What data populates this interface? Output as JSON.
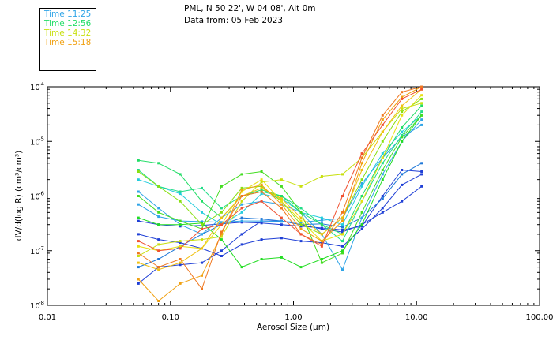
{
  "header": {
    "station": "PML, N 50 22', W 04 08', Alt 0m",
    "date_line": "Data from: 05 Feb 2023"
  },
  "legend": [
    {
      "label": "Time 11:25",
      "color": "#2fa4e7"
    },
    {
      "label": "Time 12:56",
      "color": "#22dd66"
    },
    {
      "label": "Time 14:32",
      "color": "#c8e010"
    },
    {
      "label": "Time 15:18",
      "color": "#f0a010"
    }
  ],
  "chart_data": {
    "type": "line",
    "x_scale": "log",
    "y_scale": "log",
    "xlim": [
      0.01,
      100
    ],
    "ylim": [
      1e-08,
      0.0001
    ],
    "xlabel": "Aerosol Size (μm)",
    "ylabel": "dV/d(log R) (cm³/cm³)",
    "x_ticks": [
      {
        "value": 0.01,
        "label": "0.01"
      },
      {
        "value": 0.1,
        "label": "0.10"
      },
      {
        "value": 1,
        "label": "1.00"
      },
      {
        "value": 10,
        "label": "10.00"
      },
      {
        "value": 100,
        "label": "100.00"
      }
    ],
    "y_ticks": [
      {
        "value": 1e-08,
        "label": "10",
        "exp": "-8"
      },
      {
        "value": 1e-07,
        "label": "10",
        "exp": "-7"
      },
      {
        "value": 1e-06,
        "label": "10",
        "exp": "-6"
      },
      {
        "value": 1e-05,
        "label": "10",
        "exp": "-5"
      },
      {
        "value": 0.0001,
        "label": "10",
        "exp": "-4"
      }
    ],
    "x": [
      0.055,
      0.08,
      0.12,
      0.18,
      0.26,
      0.38,
      0.55,
      0.8,
      1.15,
      1.7,
      2.5,
      3.6,
      5.3,
      7.6,
      11.0
    ],
    "series": [
      {
        "name": "s01",
        "color": "#1f3fd6",
        "values": [
          2e-07,
          1.6e-07,
          1.4e-07,
          1.1e-07,
          8e-08,
          1.3e-07,
          1.6e-07,
          1.7e-07,
          1.5e-07,
          1.4e-07,
          1.2e-07,
          2.5e-07,
          6e-07,
          1.6e-06,
          2.5e-06
        ]
      },
      {
        "name": "s02",
        "color": "#1f3fd6",
        "values": [
          3.5e-07,
          3e-07,
          2.8e-07,
          2.9e-07,
          3.1e-07,
          3.3e-07,
          3.2e-07,
          3e-07,
          2.8e-07,
          2.6e-07,
          2.4e-07,
          2.8e-07,
          1e-06,
          3e-06,
          2.8e-06
        ]
      },
      {
        "name": "s03",
        "color": "#1f3fd6",
        "values": [
          2.5e-08,
          5e-08,
          5.5e-08,
          6e-08,
          1e-07,
          2e-07,
          3.5e-07,
          3.5e-07,
          3e-07,
          2.5e-07,
          2.2e-07,
          3e-07,
          5e-07,
          8e-07,
          1.5e-06
        ]
      },
      {
        "name": "s04",
        "color": "#1f78d8",
        "values": [
          5e-08,
          7e-08,
          1.2e-07,
          2e-07,
          3e-07,
          4e-07,
          3.8e-07,
          3.5e-07,
          3e-07,
          3.1e-07,
          2.7e-07,
          4e-07,
          9e-07,
          2.5e-06,
          4e-06
        ]
      },
      {
        "name": "s05",
        "color": "#2fa4e7",
        "values": [
          7e-07,
          4.2e-07,
          3.5e-07,
          3.4e-07,
          3.3e-07,
          3.5e-07,
          3.5e-07,
          3.4e-07,
          3.3e-07,
          3.6e-07,
          3.9e-07,
          1.7e-06,
          5e-06,
          1.2e-05,
          2e-05
        ]
      },
      {
        "name": "s06",
        "color": "#2fa4e7",
        "values": [
          1.2e-06,
          6e-07,
          3e-07,
          2e-07,
          4e-07,
          7e-07,
          8e-07,
          7e-07,
          5e-07,
          2e-07,
          4.5e-08,
          4e-07,
          2.5e-06,
          1e-05,
          2.5e-05
        ]
      },
      {
        "name": "s07",
        "color": "#22ccdd",
        "values": [
          2e-06,
          1.5e-06,
          1.1e-06,
          5e-07,
          3e-07,
          5e-07,
          1.1e-06,
          9e-07,
          5e-07,
          4e-07,
          3e-07,
          1.5e-06,
          6e-06,
          1.5e-05,
          3e-05
        ]
      },
      {
        "name": "s08",
        "color": "#22dd88",
        "values": [
          3e-06,
          1.5e-06,
          1.2e-06,
          1.4e-06,
          6e-07,
          1e-06,
          1.2e-06,
          1e-06,
          6e-07,
          3e-07,
          1.5e-07,
          8e-07,
          4e-06,
          1.3e-05,
          3.5e-05
        ]
      },
      {
        "name": "s09",
        "color": "#22dd66",
        "values": [
          4.5e-06,
          4e-06,
          2.5e-06,
          8e-07,
          4e-07,
          1e-06,
          1.3e-06,
          1e-06,
          5e-07,
          3e-07,
          2e-07,
          1e-06,
          5e-06,
          1.8e-05,
          4.5e-05
        ]
      },
      {
        "name": "s10",
        "color": "#22dd22",
        "values": [
          4e-07,
          3e-07,
          3e-07,
          3.2e-07,
          1.6e-07,
          5e-08,
          7e-08,
          7.5e-08,
          5e-08,
          7e-08,
          1e-07,
          3e-07,
          2e-06,
          1e-05,
          3e-05
        ]
      },
      {
        "name": "s11",
        "color": "#44dd22",
        "values": [
          1e-06,
          5e-07,
          3.5e-07,
          2.5e-07,
          1.5e-06,
          2.5e-06,
          2.8e-06,
          1.5e-06,
          5e-07,
          6e-08,
          9e-08,
          5e-07,
          3e-06,
          1.2e-05,
          3e-05
        ]
      },
      {
        "name": "s12",
        "color": "#88e010",
        "values": [
          2.8e-06,
          1.5e-06,
          8e-07,
          3e-07,
          5e-07,
          1.4e-06,
          1.5e-06,
          8e-07,
          3e-07,
          2e-07,
          4e-07,
          2e-06,
          1e-05,
          3.5e-05,
          6e-05
        ]
      },
      {
        "name": "s13",
        "color": "#c8e010",
        "values": [
          8e-08,
          1.3e-07,
          1.5e-07,
          1.6e-07,
          1.8e-07,
          8e-07,
          1.8e-06,
          2e-06,
          1.5e-06,
          2.3e-06,
          2.5e-06,
          5e-06,
          1.5e-05,
          4e-05,
          5e-05
        ]
      },
      {
        "name": "s14",
        "color": "#e8e010",
        "values": [
          1.2e-07,
          1e-07,
          1.2e-07,
          1.1e-07,
          3e-07,
          1.2e-06,
          2e-06,
          8e-07,
          3.5e-07,
          1.5e-07,
          2e-07,
          8e-07,
          5e-06,
          3e-05,
          7e-05
        ]
      },
      {
        "name": "s15",
        "color": "#f0c010",
        "values": [
          6e-08,
          4.5e-08,
          6e-08,
          1.1e-07,
          4e-07,
          1e-06,
          1.4e-06,
          9e-07,
          4e-07,
          2e-07,
          4e-07,
          3e-06,
          1.5e-05,
          4.5e-05,
          9e-05
        ]
      },
      {
        "name": "s16",
        "color": "#f0a010",
        "values": [
          3e-08,
          1.2e-08,
          2.5e-08,
          3.5e-08,
          2e-07,
          1.3e-06,
          1.6e-06,
          7e-07,
          2.5e-07,
          1.5e-07,
          3.5e-07,
          4e-06,
          2.5e-05,
          6.5e-05,
          0.0001
        ]
      },
      {
        "name": "s17",
        "color": "#f07820",
        "values": [
          9e-08,
          5e-08,
          7e-08,
          2e-08,
          2.2e-07,
          1e-06,
          1.2e-06,
          6e-07,
          2e-07,
          1.3e-07,
          5e-07,
          5e-06,
          3e-05,
          8e-05,
          0.0001
        ]
      },
      {
        "name": "s18",
        "color": "#f05030",
        "values": [
          1.5e-07,
          1e-07,
          1.1e-07,
          2.5e-07,
          3e-07,
          6e-07,
          8e-07,
          4e-07,
          2e-07,
          1.2e-07,
          1e-06,
          6e-06,
          2e-05,
          6e-05,
          9e-05
        ]
      }
    ]
  }
}
